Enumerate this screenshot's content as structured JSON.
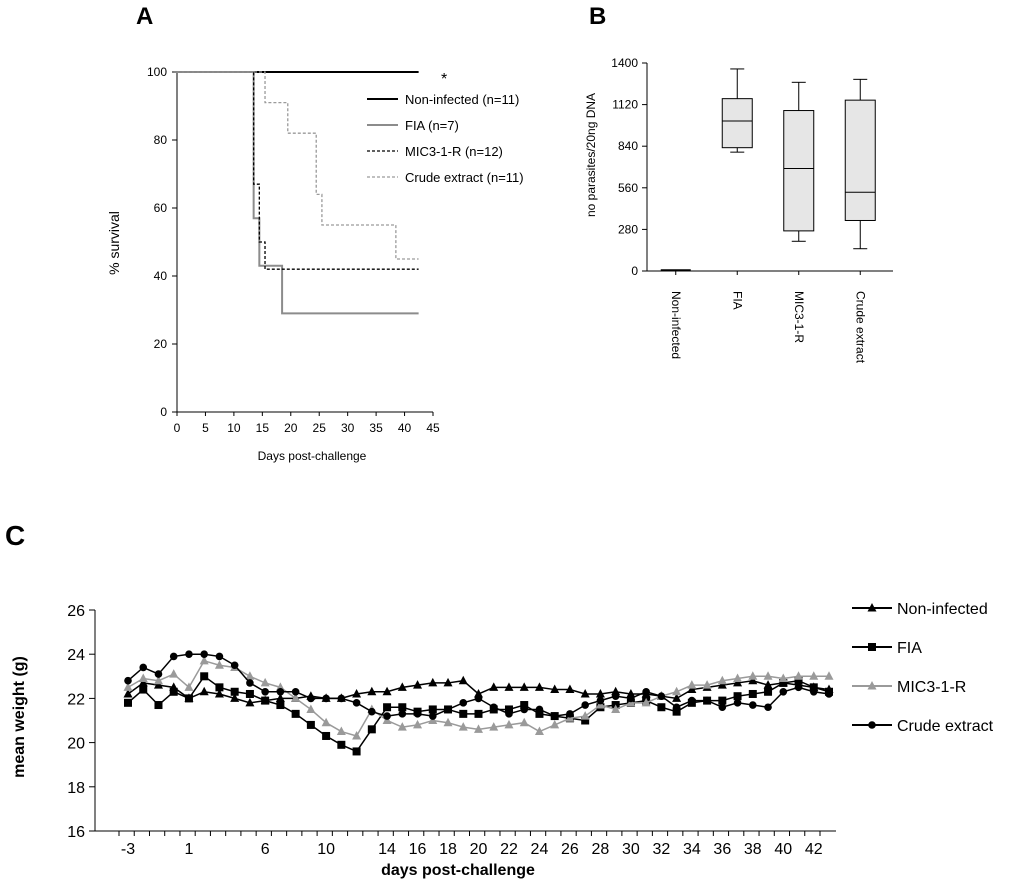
{
  "chart_data": [
    {
      "panel": "A",
      "type": "line",
      "subtype": "kaplan-meier",
      "title": "",
      "xlabel": "Days post-challenge",
      "ylabel": "% survival",
      "xlim": [
        0,
        45
      ],
      "ylim": [
        0,
        100
      ],
      "xticks": [
        0,
        5,
        10,
        15,
        20,
        25,
        30,
        35,
        40,
        45
      ],
      "yticks": [
        0,
        20,
        40,
        60,
        80,
        100
      ],
      "annotation": "*",
      "legend_position": "right",
      "series": [
        {
          "name": "Non-infected (n=11)",
          "color": "#000000",
          "dash": "solid",
          "points": [
            [
              0,
              100
            ],
            [
              43,
              100
            ]
          ]
        },
        {
          "name": "FIA (n=7)",
          "color": "#8c8c8c",
          "dash": "solid",
          "points": [
            [
              0,
              100
            ],
            [
              14,
              100
            ],
            [
              14,
              57
            ],
            [
              15,
              57
            ],
            [
              15,
              43
            ],
            [
              19,
              43
            ],
            [
              19,
              29
            ],
            [
              43,
              29
            ]
          ]
        },
        {
          "name": "MIC3-1-R (n=12)",
          "color": "#000000",
          "dash": "dashed",
          "points": [
            [
              0,
              100
            ],
            [
              14,
              100
            ],
            [
              14,
              67
            ],
            [
              15,
              67
            ],
            [
              15,
              50
            ],
            [
              16,
              50
            ],
            [
              16,
              42
            ],
            [
              43,
              42
            ]
          ]
        },
        {
          "name": "Crude extract (n=11)",
          "color": "#9a9a9a",
          "dash": "dashed",
          "points": [
            [
              0,
              100
            ],
            [
              16,
              100
            ],
            [
              16,
              91
            ],
            [
              20,
              91
            ],
            [
              20,
              82
            ],
            [
              25,
              82
            ],
            [
              25,
              64
            ],
            [
              26,
              64
            ],
            [
              26,
              55
            ],
            [
              39,
              55
            ],
            [
              39,
              45
            ],
            [
              43,
              45
            ]
          ]
        }
      ]
    },
    {
      "panel": "B",
      "type": "box",
      "title": "",
      "ylabel": "no parasites/20ng DNA",
      "ylim": [
        0,
        1400
      ],
      "yticks": [
        0,
        280,
        560,
        840,
        1120,
        1400
      ],
      "categories": [
        "Non-infected",
        "FIA",
        "MIC3-1-R",
        "Crude extract"
      ],
      "boxes": [
        {
          "min": 0,
          "q1": 0,
          "median": 0,
          "q3": 0,
          "max": 0
        },
        {
          "min": 800,
          "q1": 830,
          "median": 1010,
          "q3": 1160,
          "max": 1360
        },
        {
          "min": 200,
          "q1": 270,
          "median": 690,
          "q3": 1080,
          "max": 1270
        },
        {
          "min": 150,
          "q1": 340,
          "median": 530,
          "q3": 1150,
          "max": 1290
        }
      ]
    },
    {
      "panel": "C",
      "type": "line",
      "title": "",
      "xlabel": "days post-challenge",
      "ylabel": "mean weight (g)",
      "ylim": [
        16,
        26
      ],
      "yticks": [
        16,
        18,
        20,
        22,
        24,
        26
      ],
      "x": [
        -3,
        -2,
        -1,
        0,
        1,
        2,
        3,
        4,
        5,
        6,
        7,
        8,
        9,
        10,
        11,
        12,
        13,
        14,
        15,
        16,
        17,
        18,
        19,
        20,
        21,
        22,
        23,
        24,
        25,
        26,
        27,
        28,
        29,
        30,
        31,
        32,
        33,
        34,
        35,
        36,
        37,
        38,
        39,
        40,
        41,
        42,
        43
      ],
      "xticks": [
        -3,
        1,
        6,
        10,
        14,
        16,
        18,
        20,
        22,
        24,
        26,
        28,
        30,
        32,
        34,
        36,
        38,
        40,
        42
      ],
      "legend_position": "right",
      "series": [
        {
          "name": "Non-infected",
          "color": "#000000",
          "marker": "triangle",
          "values": [
            22.2,
            22.7,
            22.6,
            22.5,
            22.0,
            22.3,
            22.2,
            22.0,
            21.8,
            21.9,
            22.0,
            22.0,
            22.1,
            22.0,
            22.0,
            22.2,
            22.3,
            22.3,
            22.5,
            22.6,
            22.7,
            22.7,
            22.8,
            22.2,
            22.5,
            22.5,
            22.5,
            22.5,
            22.4,
            22.4,
            22.2,
            22.2,
            22.3,
            22.2,
            22.2,
            22.1,
            22.0,
            22.4,
            22.5,
            22.6,
            22.7,
            22.8,
            22.6,
            22.7,
            22.6,
            22.5,
            22.4
          ]
        },
        {
          "name": "FIA",
          "color": "#000000",
          "marker": "square",
          "values": [
            21.8,
            22.4,
            21.7,
            22.3,
            22.0,
            23.0,
            22.5,
            22.3,
            22.2,
            21.9,
            21.7,
            21.3,
            20.8,
            20.3,
            19.9,
            19.6,
            20.6,
            21.6,
            21.6,
            21.4,
            21.5,
            21.5,
            21.3,
            21.3,
            21.5,
            21.5,
            21.7,
            21.3,
            21.2,
            21.1,
            21.0,
            21.6,
            21.7,
            21.8,
            21.9,
            21.6,
            21.4,
            21.8,
            21.9,
            21.9,
            22.1,
            22.2,
            22.3,
            22.7,
            22.8,
            22.5,
            22.3
          ]
        },
        {
          "name": "MIC3-1-R",
          "color": "#9a9a9a",
          "marker": "triangle",
          "values": [
            22.5,
            22.9,
            22.8,
            23.1,
            22.5,
            23.7,
            23.5,
            23.4,
            23.0,
            22.7,
            22.5,
            22.0,
            21.5,
            20.9,
            20.5,
            20.3,
            21.5,
            21.0,
            20.7,
            20.8,
            21.0,
            20.9,
            20.7,
            20.6,
            20.7,
            20.8,
            20.9,
            20.5,
            20.8,
            21.1,
            21.2,
            21.7,
            21.5,
            21.8,
            21.8,
            22.1,
            22.3,
            22.6,
            22.6,
            22.8,
            22.9,
            23.0,
            23.0,
            22.9,
            23.0,
            23.0,
            23.0
          ]
        },
        {
          "name": "Crude extract",
          "color": "#000000",
          "marker": "circle",
          "values": [
            22.8,
            23.4,
            23.1,
            23.9,
            24.0,
            24.0,
            23.9,
            23.5,
            22.7,
            22.3,
            22.3,
            22.3,
            22.0,
            22.0,
            22.0,
            21.8,
            21.4,
            21.2,
            21.3,
            21.3,
            21.2,
            21.5,
            21.8,
            22.0,
            21.6,
            21.3,
            21.5,
            21.5,
            21.2,
            21.3,
            21.7,
            21.9,
            22.1,
            22.0,
            22.3,
            22.1,
            21.6,
            21.9,
            21.9,
            21.6,
            21.8,
            21.7,
            21.6,
            22.3,
            22.5,
            22.3,
            22.2
          ]
        }
      ]
    }
  ],
  "panels": {
    "a": "A",
    "b": "B",
    "c": "C"
  }
}
